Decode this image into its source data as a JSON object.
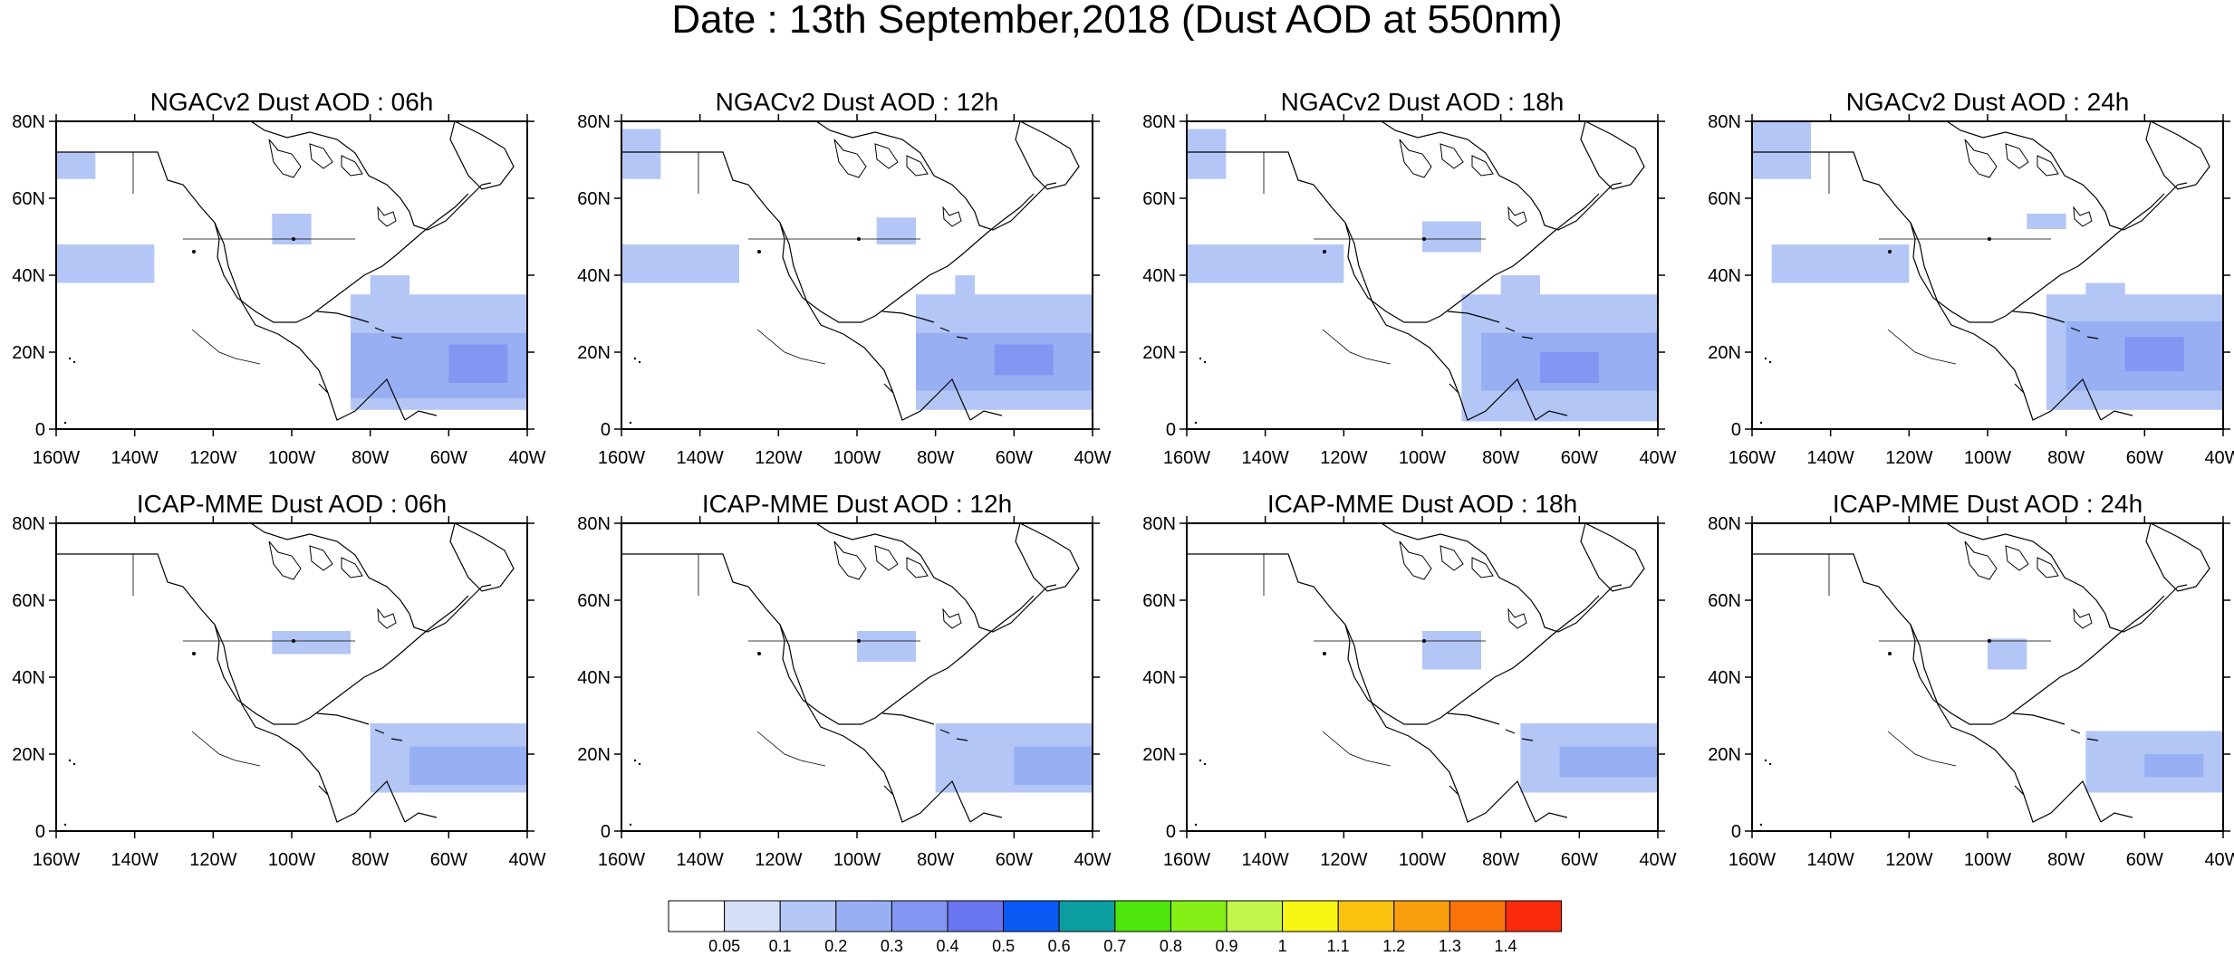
{
  "title": "Date : 13th September,2018 (Dust AOD at 550nm)",
  "panel_titles": [
    "NGACv2 Dust AOD : 06h",
    "NGACv2 Dust AOD : 12h",
    "NGACv2 Dust AOD : 18h",
    "NGACv2 Dust AOD : 24h",
    "ICAP-MME Dust AOD : 06h",
    "ICAP-MME Dust AOD : 12h",
    "ICAP-MME Dust AOD : 18h",
    "ICAP-MME Dust AOD : 24h"
  ],
  "map": {
    "lon_range": [
      -160,
      -40
    ],
    "lat_range": [
      0,
      80
    ],
    "lat_ticks": [
      0,
      20,
      40,
      60,
      80
    ],
    "lat_tick_labels": [
      "0",
      "20N",
      "40N",
      "60N",
      "80N"
    ],
    "lon_ticks": [
      -160,
      -140,
      -120,
      -100,
      -80,
      -60,
      -40
    ],
    "lon_tick_labels": [
      "160W",
      "140W",
      "120W",
      "100W",
      "80W",
      "60W",
      "40W"
    ]
  },
  "colorbar": {
    "labels": [
      "0.05",
      "0.1",
      "0.2",
      "0.3",
      "0.4",
      "0.5",
      "0.6",
      "0.7",
      "0.8",
      "0.9",
      "1",
      "1.1",
      "1.2",
      "1.3",
      "1.4"
    ],
    "colors": [
      "#ffffff",
      "#d6dff8",
      "#b3c6f6",
      "#98b0f3",
      "#8296f2",
      "#6a75f0",
      "#0a5bf5",
      "#0b9da0",
      "#4ee50a",
      "#86ef16",
      "#c3f54a",
      "#f8f615",
      "#f9c20f",
      "#f99e0d",
      "#f9730b",
      "#f92a0b"
    ]
  },
  "chart_data": [
    {
      "type": "heatmap",
      "title": "NGACv2 Dust AOD : 06h",
      "x_range": [
        -160,
        -40
      ],
      "y_range": [
        0,
        80
      ],
      "regions": [
        {
          "lon": [
            -160,
            -150
          ],
          "lat": [
            65,
            72
          ],
          "aod": 0.1
        },
        {
          "lon": [
            -160,
            -135
          ],
          "lat": [
            38,
            48
          ],
          "aod": 0.1
        },
        {
          "lon": [
            -105,
            -95
          ],
          "lat": [
            48,
            56
          ],
          "aod": 0.1
        },
        {
          "lon": [
            -80,
            -70
          ],
          "lat": [
            25,
            40
          ],
          "aod": 0.1
        },
        {
          "lon": [
            -85,
            -40
          ],
          "lat": [
            5,
            35
          ],
          "aod": 0.1
        },
        {
          "lon": [
            -85,
            -40
          ],
          "lat": [
            8,
            25
          ],
          "aod": 0.2
        },
        {
          "lon": [
            -60,
            -45
          ],
          "lat": [
            12,
            22
          ],
          "aod": 0.3
        }
      ]
    },
    {
      "type": "heatmap",
      "title": "NGACv2 Dust AOD : 12h",
      "x_range": [
        -160,
        -40
      ],
      "y_range": [
        0,
        80
      ],
      "regions": [
        {
          "lon": [
            -160,
            -150
          ],
          "lat": [
            65,
            78
          ],
          "aod": 0.1
        },
        {
          "lon": [
            -160,
            -130
          ],
          "lat": [
            38,
            48
          ],
          "aod": 0.1
        },
        {
          "lon": [
            -95,
            -85
          ],
          "lat": [
            48,
            55
          ],
          "aod": 0.1
        },
        {
          "lon": [
            -75,
            -70
          ],
          "lat": [
            30,
            40
          ],
          "aod": 0.1
        },
        {
          "lon": [
            -85,
            -40
          ],
          "lat": [
            5,
            35
          ],
          "aod": 0.1
        },
        {
          "lon": [
            -85,
            -40
          ],
          "lat": [
            10,
            25
          ],
          "aod": 0.2
        },
        {
          "lon": [
            -65,
            -50
          ],
          "lat": [
            14,
            22
          ],
          "aod": 0.3
        }
      ]
    },
    {
      "type": "heatmap",
      "title": "NGACv2 Dust AOD : 18h",
      "x_range": [
        -160,
        -40
      ],
      "y_range": [
        0,
        80
      ],
      "regions": [
        {
          "lon": [
            -160,
            -150
          ],
          "lat": [
            65,
            78
          ],
          "aod": 0.1
        },
        {
          "lon": [
            -160,
            -120
          ],
          "lat": [
            38,
            48
          ],
          "aod": 0.1
        },
        {
          "lon": [
            -100,
            -85
          ],
          "lat": [
            46,
            54
          ],
          "aod": 0.1
        },
        {
          "lon": [
            -80,
            -70
          ],
          "lat": [
            25,
            40
          ],
          "aod": 0.1
        },
        {
          "lon": [
            -90,
            -40
          ],
          "lat": [
            2,
            35
          ],
          "aod": 0.1
        },
        {
          "lon": [
            -85,
            -40
          ],
          "lat": [
            10,
            25
          ],
          "aod": 0.2
        },
        {
          "lon": [
            -70,
            -55
          ],
          "lat": [
            12,
            20
          ],
          "aod": 0.3
        }
      ]
    },
    {
      "type": "heatmap",
      "title": "NGACv2 Dust AOD : 24h",
      "x_range": [
        -160,
        -40
      ],
      "y_range": [
        0,
        80
      ],
      "regions": [
        {
          "lon": [
            -160,
            -145
          ],
          "lat": [
            65,
            80
          ],
          "aod": 0.1
        },
        {
          "lon": [
            -155,
            -120
          ],
          "lat": [
            38,
            48
          ],
          "aod": 0.1
        },
        {
          "lon": [
            -90,
            -80
          ],
          "lat": [
            52,
            56
          ],
          "aod": 0.1
        },
        {
          "lon": [
            -75,
            -65
          ],
          "lat": [
            25,
            38
          ],
          "aod": 0.1
        },
        {
          "lon": [
            -85,
            -40
          ],
          "lat": [
            5,
            35
          ],
          "aod": 0.1
        },
        {
          "lon": [
            -80,
            -40
          ],
          "lat": [
            10,
            28
          ],
          "aod": 0.2
        },
        {
          "lon": [
            -65,
            -50
          ],
          "lat": [
            15,
            24
          ],
          "aod": 0.3
        }
      ]
    },
    {
      "type": "heatmap",
      "title": "ICAP-MME Dust AOD : 06h",
      "x_range": [
        -160,
        -40
      ],
      "y_range": [
        0,
        80
      ],
      "regions": [
        {
          "lon": [
            -105,
            -85
          ],
          "lat": [
            46,
            52
          ],
          "aod": 0.1
        },
        {
          "lon": [
            -80,
            -40
          ],
          "lat": [
            10,
            28
          ],
          "aod": 0.1
        },
        {
          "lon": [
            -70,
            -40
          ],
          "lat": [
            12,
            22
          ],
          "aod": 0.2
        }
      ]
    },
    {
      "type": "heatmap",
      "title": "ICAP-MME Dust AOD : 12h",
      "x_range": [
        -160,
        -40
      ],
      "y_range": [
        0,
        80
      ],
      "regions": [
        {
          "lon": [
            -100,
            -85
          ],
          "lat": [
            44,
            52
          ],
          "aod": 0.1
        },
        {
          "lon": [
            -80,
            -40
          ],
          "lat": [
            10,
            28
          ],
          "aod": 0.1
        },
        {
          "lon": [
            -60,
            -40
          ],
          "lat": [
            12,
            22
          ],
          "aod": 0.2
        }
      ]
    },
    {
      "type": "heatmap",
      "title": "ICAP-MME Dust AOD : 18h",
      "x_range": [
        -160,
        -40
      ],
      "y_range": [
        0,
        80
      ],
      "regions": [
        {
          "lon": [
            -100,
            -85
          ],
          "lat": [
            42,
            52
          ],
          "aod": 0.1
        },
        {
          "lon": [
            -75,
            -40
          ],
          "lat": [
            10,
            28
          ],
          "aod": 0.1
        },
        {
          "lon": [
            -65,
            -40
          ],
          "lat": [
            14,
            22
          ],
          "aod": 0.2
        }
      ]
    },
    {
      "type": "heatmap",
      "title": "ICAP-MME Dust AOD : 24h",
      "x_range": [
        -160,
        -40
      ],
      "y_range": [
        0,
        80
      ],
      "regions": [
        {
          "lon": [
            -100,
            -90
          ],
          "lat": [
            42,
            50
          ],
          "aod": 0.1
        },
        {
          "lon": [
            -75,
            -40
          ],
          "lat": [
            10,
            26
          ],
          "aod": 0.1
        },
        {
          "lon": [
            -60,
            -45
          ],
          "lat": [
            14,
            20
          ],
          "aod": 0.2
        }
      ]
    }
  ]
}
